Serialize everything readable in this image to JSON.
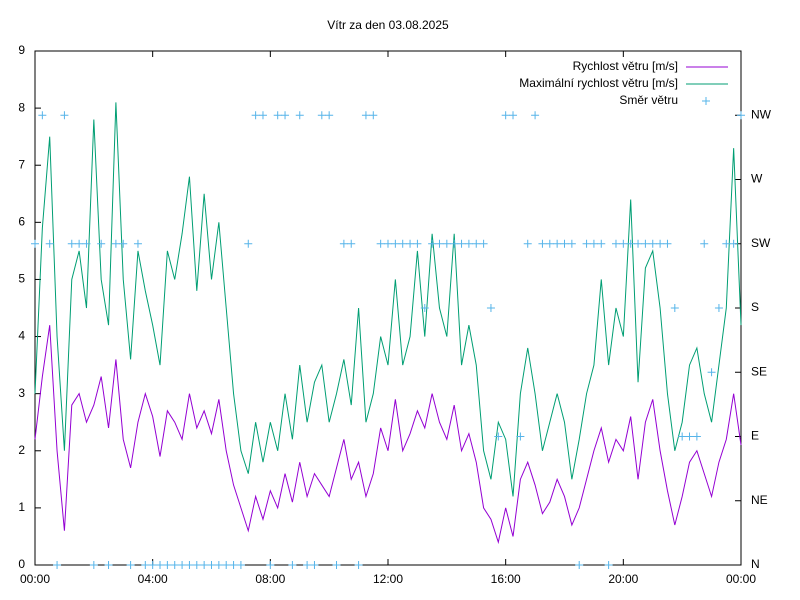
{
  "chart_data": {
    "type": "line",
    "title": "Vítr za den 03.08.2025",
    "x": [
      0,
      0.25,
      0.5,
      0.75,
      1,
      1.25,
      1.5,
      1.75,
      2,
      2.25,
      2.5,
      2.75,
      3,
      3.25,
      3.5,
      3.75,
      4,
      4.25,
      4.5,
      4.75,
      5,
      5.25,
      5.5,
      5.75,
      6,
      6.25,
      6.5,
      6.75,
      7,
      7.25,
      7.5,
      7.75,
      8,
      8.25,
      8.5,
      8.75,
      9,
      9.25,
      9.5,
      9.75,
      10,
      10.25,
      10.5,
      10.75,
      11,
      11.25,
      11.5,
      11.75,
      12,
      12.25,
      12.5,
      12.75,
      13,
      13.25,
      13.5,
      13.75,
      14,
      14.25,
      14.5,
      14.75,
      15,
      15.25,
      15.5,
      15.75,
      16,
      16.25,
      16.5,
      16.75,
      17,
      17.25,
      17.5,
      17.75,
      18,
      18.25,
      18.5,
      18.75,
      19,
      19.25,
      19.5,
      19.75,
      20,
      20.25,
      20.5,
      20.75,
      21,
      21.25,
      21.5,
      21.75,
      22,
      22.25,
      22.5,
      22.75,
      23,
      23.25,
      23.5,
      23.75,
      24
    ],
    "series": [
      {
        "name": "Rychlost větru [m/s]",
        "color": "#9400d3",
        "style": "line",
        "values": [
          2.2,
          3.3,
          4.2,
          2.0,
          0.6,
          2.8,
          3.0,
          2.5,
          2.8,
          3.3,
          2.4,
          3.6,
          2.2,
          1.7,
          2.5,
          3.0,
          2.6,
          1.9,
          2.7,
          2.5,
          2.2,
          3.0,
          2.4,
          2.7,
          2.3,
          2.9,
          2.0,
          1.4,
          1.0,
          0.6,
          1.2,
          0.8,
          1.3,
          1.0,
          1.6,
          1.1,
          1.8,
          1.2,
          1.6,
          1.4,
          1.2,
          1.7,
          2.2,
          1.5,
          1.8,
          1.2,
          1.6,
          2.4,
          2.0,
          2.9,
          2.0,
          2.3,
          2.7,
          2.4,
          3.0,
          2.5,
          2.2,
          2.8,
          2.0,
          2.3,
          1.8,
          1.0,
          0.8,
          0.4,
          1.0,
          0.5,
          1.5,
          1.8,
          1.4,
          0.9,
          1.1,
          1.5,
          1.2,
          0.7,
          1.0,
          1.5,
          2.0,
          2.4,
          1.8,
          2.2,
          2.0,
          2.6,
          1.5,
          2.5,
          2.9,
          2.0,
          1.3,
          0.7,
          1.2,
          1.8,
          2.0,
          1.6,
          1.2,
          1.8,
          2.2,
          3.0,
          2.1
        ]
      },
      {
        "name": "Maximální rychlost větru [m/s]",
        "color": "#009e73",
        "style": "line",
        "values": [
          3.0,
          5.9,
          7.5,
          4.0,
          2.0,
          5.0,
          5.5,
          4.5,
          7.8,
          5.0,
          4.2,
          8.1,
          5.0,
          3.6,
          5.5,
          4.8,
          4.2,
          3.5,
          5.5,
          5.0,
          5.8,
          6.8,
          4.8,
          6.5,
          5.0,
          6.0,
          4.5,
          3.0,
          2.0,
          1.6,
          2.5,
          1.8,
          2.5,
          2.0,
          3.0,
          2.2,
          3.5,
          2.5,
          3.2,
          3.5,
          2.5,
          3.0,
          3.6,
          2.8,
          4.5,
          2.5,
          3.0,
          4.0,
          3.5,
          5.0,
          3.5,
          4.0,
          5.5,
          4.0,
          5.8,
          4.5,
          4.0,
          5.8,
          3.5,
          4.2,
          3.5,
          2.0,
          1.5,
          2.5,
          2.2,
          1.2,
          3.0,
          3.8,
          3.0,
          2.0,
          2.5,
          3.0,
          2.5,
          1.5,
          2.2,
          3.0,
          3.5,
          5.0,
          3.5,
          4.5,
          4.0,
          6.4,
          3.2,
          5.2,
          5.5,
          4.5,
          3.0,
          2.0,
          2.5,
          3.5,
          3.8,
          3.0,
          2.5,
          3.5,
          4.5,
          7.3,
          4.2
        ]
      },
      {
        "name": "Směr větru",
        "color": "#56b4e9",
        "style": "points",
        "axis": "y2",
        "values": [
          5,
          7,
          5,
          0,
          7,
          5,
          5,
          5,
          0,
          5,
          0,
          5,
          5,
          0,
          5,
          0,
          0,
          0,
          0,
          0,
          0,
          0,
          0,
          0,
          0,
          0,
          0,
          0,
          0,
          5,
          7,
          7,
          0,
          7,
          7,
          0,
          7,
          0,
          0,
          7,
          7,
          0,
          5,
          5,
          0,
          7,
          7,
          5,
          5,
          5,
          5,
          5,
          5,
          4,
          5,
          5,
          5,
          5,
          5,
          5,
          5,
          5,
          4,
          2,
          7,
          7,
          2,
          5,
          7,
          5,
          5,
          5,
          5,
          5,
          0,
          5,
          5,
          5,
          0,
          5,
          5,
          5,
          5,
          5,
          5,
          5,
          5,
          4,
          2,
          2,
          2,
          5,
          3,
          4,
          5,
          5,
          7
        ]
      }
    ],
    "xlim": [
      0,
      24
    ],
    "xticks": [
      {
        "value": 0,
        "label": "00:00"
      },
      {
        "value": 4,
        "label": "04:00"
      },
      {
        "value": 8,
        "label": "08:00"
      },
      {
        "value": 12,
        "label": "12:00"
      },
      {
        "value": 16,
        "label": "16:00"
      },
      {
        "value": 20,
        "label": "20:00"
      },
      {
        "value": 24,
        "label": "00:00"
      }
    ],
    "ylim": [
      0,
      9
    ],
    "yticks": [
      0,
      1,
      2,
      3,
      4,
      5,
      6,
      7,
      8,
      9
    ],
    "y2lim": [
      0,
      8
    ],
    "y2ticks": [
      {
        "value": 0,
        "label": "N"
      },
      {
        "value": 1,
        "label": "NE"
      },
      {
        "value": 2,
        "label": "E"
      },
      {
        "value": 3,
        "label": "SE"
      },
      {
        "value": 4,
        "label": "S"
      },
      {
        "value": 5,
        "label": "SW"
      },
      {
        "value": 6,
        "label": "W"
      },
      {
        "value": 7,
        "label": "NW"
      }
    ],
    "legend": "top-right",
    "grid": false
  }
}
